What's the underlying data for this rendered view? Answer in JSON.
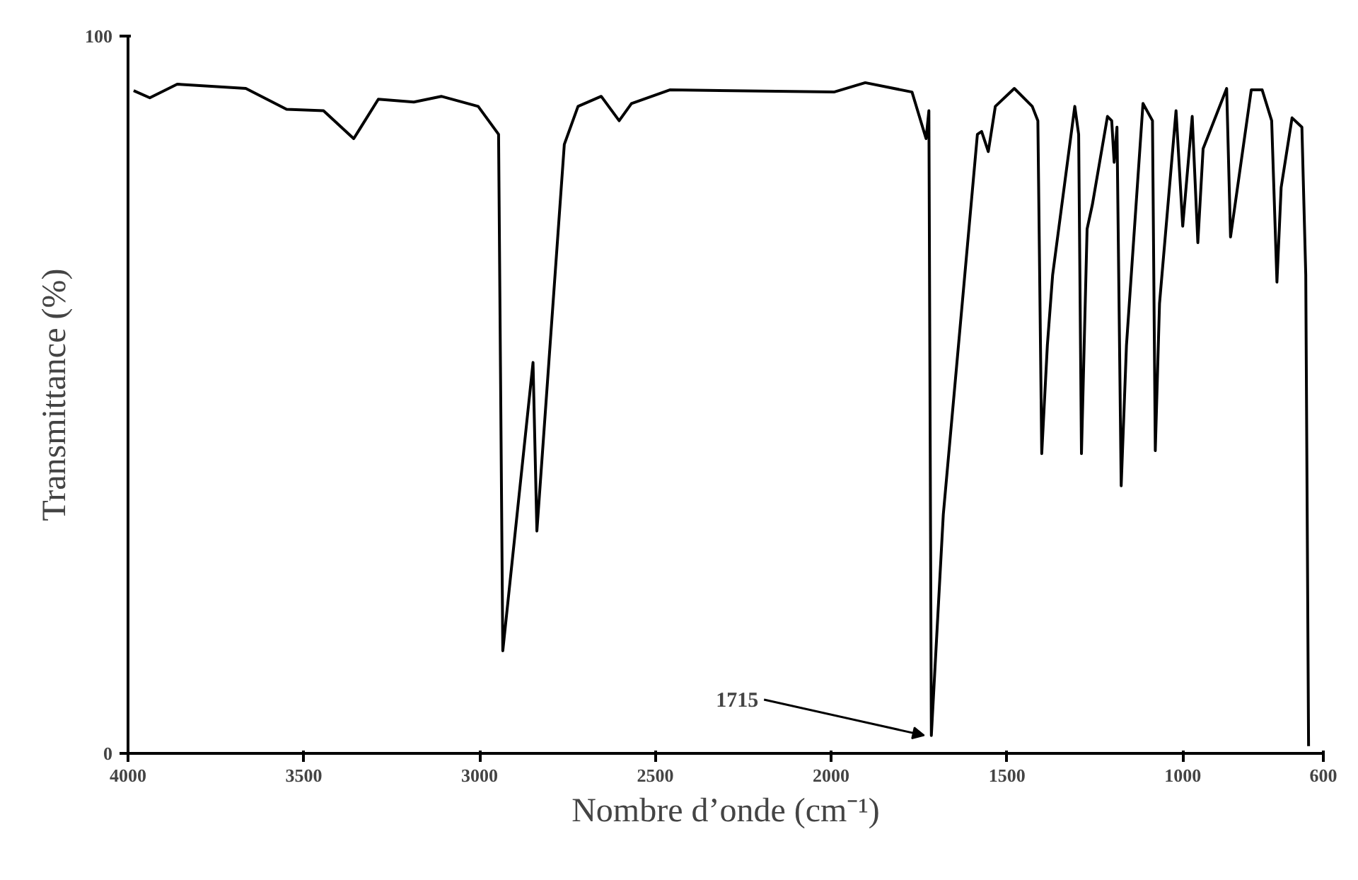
{
  "chart_data": {
    "type": "line",
    "xlabel": "Nombre d’onde (cm⁻¹)",
    "ylabel": "Transmittance (%)",
    "x": [
      3984,
      3938,
      3860,
      3665,
      3549,
      3444,
      3358,
      3288,
      3187,
      3109,
      3004,
      2946,
      2934,
      2848,
      2837,
      2759,
      2720,
      2654,
      2603,
      2568,
      2459,
      1992,
      1903,
      1770,
      1730,
      1722,
      1715,
      1681,
      1584,
      1572,
      1553,
      1533,
      1479,
      1428,
      1412,
      1401,
      1385,
      1370,
      1307,
      1296,
      1288,
      1272,
      1257,
      1214,
      1202,
      1195,
      1187,
      1175,
      1160,
      1113,
      1086,
      1078,
      1066,
      1019,
      1000,
      973,
      957,
      942,
      875,
      864,
      805,
      774,
      747,
      732,
      720,
      689,
      661,
      650,
      642
    ],
    "series": [
      {
        "color": "#000000",
        "values": [
          92.4,
          91.4,
          93.3,
          92.7,
          89.8,
          89.6,
          85.7,
          91.2,
          90.8,
          91.6,
          90.2,
          86.3,
          14.3,
          54.5,
          31.0,
          84.9,
          90.2,
          91.6,
          88.2,
          90.6,
          92.5,
          92.2,
          93.5,
          92.2,
          85.7,
          89.6,
          2.5,
          33.3,
          86.3,
          86.7,
          83.9,
          90.2,
          92.7,
          90.2,
          88.2,
          41.8,
          56.9,
          66.7,
          90.2,
          86.3,
          41.8,
          73.1,
          76.5,
          88.8,
          88.2,
          82.4,
          87.3,
          37.3,
          56.9,
          90.6,
          88.2,
          42.2,
          62.7,
          89.6,
          73.5,
          88.8,
          71.2,
          84.3,
          92.7,
          72.0,
          92.5,
          92.5,
          88.2,
          65.7,
          78.9,
          88.6,
          87.3,
          66.7,
          1.0
        ]
      }
    ],
    "xlim": [
      4000,
      600
    ],
    "ylim": [
      0,
      100
    ],
    "xticks": [
      4000,
      3500,
      3000,
      2500,
      2000,
      1500,
      1000,
      600
    ],
    "yticks": [
      0,
      100
    ],
    "annotations": [
      {
        "text": "1715",
        "x": 1715,
        "y": 2.5
      }
    ]
  }
}
